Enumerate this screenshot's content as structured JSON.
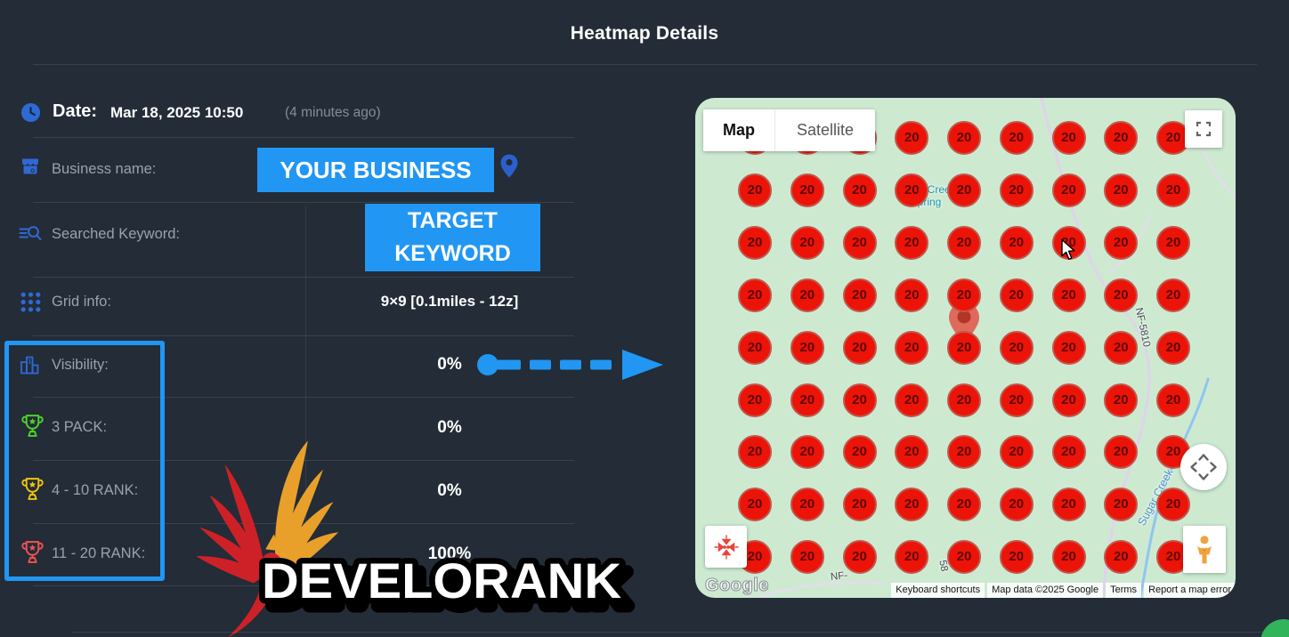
{
  "title": "Heatmap Details",
  "info": {
    "date_label": "Date:",
    "date_value": "Mar 18, 2025 10:50",
    "date_ago": "(4 minutes ago)",
    "business_label": "Business name:",
    "business_value": "YOUR BUSINESS",
    "keyword_label": "Searched Keyword:",
    "keyword_line1": "TARGET",
    "keyword_line2": "KEYWORD",
    "grid_label": "Grid info:",
    "grid_value": "9×9 [0.1miles - 12z]",
    "visibility_label": "Visibility:",
    "visibility_value": "0%",
    "pack3_label": "3 PACK:",
    "pack3_value": "0%",
    "rank410_label": "4 - 10 RANK:",
    "rank410_value": "0%",
    "rank1120_label": "11 - 20 RANK:",
    "rank1120_value": "100%"
  },
  "logo": {
    "wordmark": "DEVELORANK"
  },
  "map": {
    "controls": {
      "map_tab": "Map",
      "satellite_tab": "Satellite"
    },
    "google_logo": "Google",
    "attribution": [
      "Keyboard shortcuts",
      "Map data ©2025 Google",
      "Terms",
      "Report a map error"
    ],
    "labels": {
      "spring_line1": "Sugar Creek",
      "spring_line2": "Spring",
      "road_main": "NF-5810",
      "creek": "Sugar Creek",
      "road_58": "58",
      "road_nf": "NF-"
    },
    "grid": {
      "rows": 9,
      "cols": 9,
      "values": [
        [
          20,
          20,
          20,
          20,
          20,
          20,
          20,
          20,
          20
        ],
        [
          20,
          20,
          20,
          20,
          20,
          20,
          20,
          20,
          20
        ],
        [
          20,
          20,
          20,
          20,
          20,
          20,
          20,
          20,
          20
        ],
        [
          20,
          20,
          20,
          20,
          20,
          20,
          20,
          20,
          20
        ],
        [
          20,
          20,
          20,
          20,
          20,
          20,
          20,
          20,
          20
        ],
        [
          20,
          20,
          20,
          20,
          20,
          20,
          20,
          20,
          20
        ],
        [
          20,
          20,
          20,
          20,
          20,
          20,
          20,
          20,
          20
        ],
        [
          20,
          20,
          20,
          20,
          20,
          20,
          20,
          20,
          20
        ],
        [
          20,
          20,
          20,
          20,
          20,
          20,
          20,
          20,
          20
        ]
      ]
    }
  },
  "colors": {
    "background": "#232c37",
    "accent_blue": "#2196f3",
    "icon_blue": "#2f6ad4",
    "heat_red": "#ec1309",
    "map_green": "#cdead1",
    "trophy_green": "#4fd32a",
    "trophy_yellow": "#f1c40f",
    "trophy_red": "#f15352",
    "chat_green": "#31b45a"
  }
}
